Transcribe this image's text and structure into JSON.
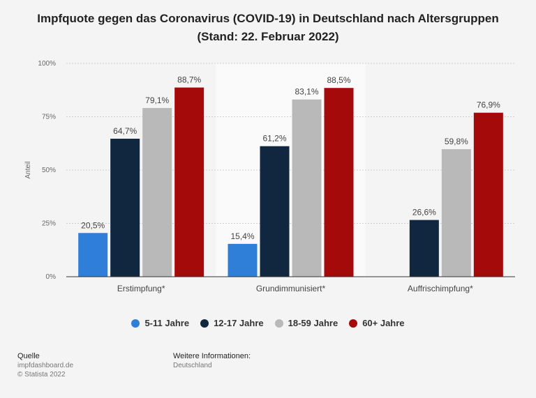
{
  "title_line1": "Impfquote gegen das Coronavirus (COVID-19) in Deutschland nach Altersgruppen",
  "title_line2": "(Stand: 22. Februar 2022)",
  "chart_data": {
    "type": "bar",
    "categories": [
      "Erstimpfung*",
      "Grundimmunisiert*",
      "Auffrischimpfung*"
    ],
    "series": [
      {
        "name": "5-11 Jahre",
        "color": "#2f7ed8",
        "values": [
          20.5,
          15.4,
          null
        ],
        "labels": [
          "20,5%",
          "15,4%",
          null
        ]
      },
      {
        "name": "12-17 Jahre",
        "color": "#10273f",
        "values": [
          64.7,
          61.2,
          26.6
        ],
        "labels": [
          "64,7%",
          "61,2%",
          "26,6%"
        ]
      },
      {
        "name": "18-59 Jahre",
        "color": "#b9b9b9",
        "values": [
          79.1,
          83.1,
          59.8
        ],
        "labels": [
          "79,1%",
          "83,1%",
          "59,8%"
        ]
      },
      {
        "name": "60+ Jahre",
        "color": "#a50a0a",
        "values": [
          88.7,
          88.5,
          76.9
        ],
        "labels": [
          "88,7%",
          "88,5%",
          "76,9%"
        ]
      }
    ],
    "ylabel": "Anteil",
    "ylim": [
      0,
      100
    ],
    "yticks": [
      0,
      25,
      50,
      75,
      100
    ],
    "ytick_labels": [
      "0%",
      "25%",
      "50%",
      "75%",
      "100%"
    ],
    "grid": true,
    "legend_position": "bottom"
  },
  "footer": {
    "source_label": "Quelle",
    "source_line1": "impfdashboard.de",
    "source_line2": "© Statista 2022",
    "info_label": "Weitere Informationen:",
    "info_line1": "Deutschland"
  }
}
